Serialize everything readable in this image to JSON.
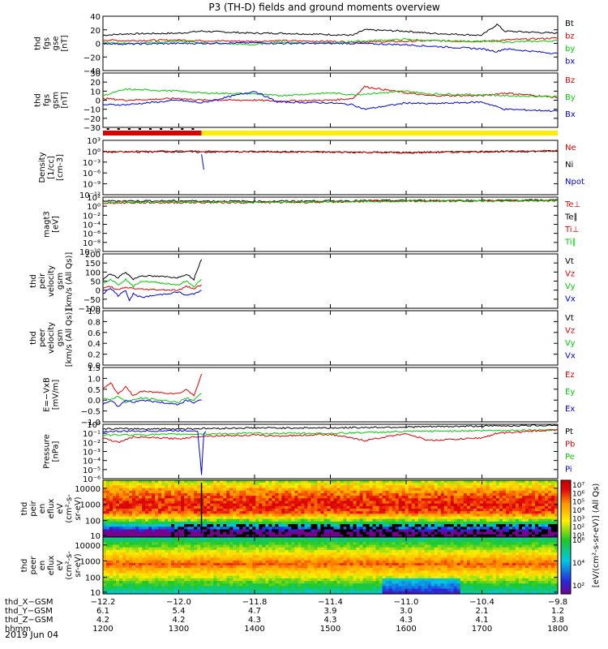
{
  "title": "P3 (TH-D) fields and ground moments overview",
  "date": "2019 Jun 04",
  "colors": {
    "black": "#000000",
    "red": "#e00000",
    "green": "#00cc00",
    "blue": "#0000dd",
    "yellow": "#ffee00"
  },
  "chart_data": [
    {
      "id": "fgs-gse",
      "type": "line",
      "ylabel": [
        "thd",
        "fgs",
        "gse",
        "[nT]"
      ],
      "ylim": [
        -40,
        40
      ],
      "yticks": [
        "40",
        "20",
        "0",
        "−20",
        "−40"
      ],
      "legend": [
        {
          "label": "Bt",
          "color": "#000000"
        },
        {
          "label": "bz",
          "color": "#e00000"
        },
        {
          "label": "by",
          "color": "#00cc00"
        },
        {
          "label": "bx",
          "color": "#0000dd"
        }
      ],
      "series": [
        {
          "color": "#000000",
          "x": [
            1200,
            1230,
            1300,
            1330,
            1400,
            1430,
            1500,
            1530,
            1545,
            1600,
            1630,
            1700,
            1720,
            1730,
            1800
          ],
          "y": [
            12,
            14,
            15,
            18,
            15,
            15,
            13,
            12,
            20,
            18,
            15,
            12,
            28,
            18,
            15
          ]
        },
        {
          "color": "#e00000",
          "x": [
            1200,
            1230,
            1300,
            1330,
            1400,
            1430,
            1500,
            1530,
            1600,
            1630,
            1700,
            1730,
            1800
          ],
          "y": [
            5,
            4,
            5,
            4,
            3,
            4,
            3,
            2,
            3,
            4,
            3,
            5,
            8
          ]
        },
        {
          "color": "#00cc00",
          "x": [
            1200,
            1230,
            1300,
            1330,
            1400,
            1430,
            1500,
            1530,
            1600,
            1630,
            1700,
            1730,
            1800
          ],
          "y": [
            2,
            0,
            3,
            1,
            -2,
            2,
            0,
            3,
            6,
            4,
            3,
            2,
            4
          ]
        },
        {
          "color": "#0000dd",
          "x": [
            1200,
            1230,
            1300,
            1330,
            1400,
            1430,
            1500,
            1530,
            1600,
            1630,
            1700,
            1720,
            1730,
            1800
          ],
          "y": [
            0,
            -1,
            0,
            0,
            1,
            0,
            0,
            0,
            -2,
            -4,
            -8,
            -12,
            -8,
            -15
          ]
        }
      ]
    },
    {
      "id": "fgs-gsm",
      "type": "line",
      "ylabel": [
        "thd",
        "fgs",
        "gsm",
        "[nT]"
      ],
      "ylim": [
        -30,
        30
      ],
      "yticks": [
        "30",
        "20",
        "10",
        "0",
        "−10",
        "−20",
        "−30"
      ],
      "legend": [
        {
          "label": "Bz",
          "color": "#e00000"
        },
        {
          "label": "By",
          "color": "#00cc00"
        },
        {
          "label": "Bx",
          "color": "#0000dd"
        }
      ],
      "series": [
        {
          "color": "#e00000",
          "x": [
            1200,
            1230,
            1300,
            1330,
            1400,
            1430,
            1500,
            1530,
            1545,
            1600,
            1630,
            1700,
            1730,
            1800
          ],
          "y": [
            2,
            0,
            2,
            0,
            0,
            -1,
            0,
            2,
            15,
            8,
            5,
            5,
            8,
            3
          ]
        },
        {
          "color": "#00cc00",
          "x": [
            1200,
            1230,
            1300,
            1330,
            1400,
            1430,
            1500,
            1530,
            1600,
            1630,
            1700,
            1730,
            1800
          ],
          "y": [
            5,
            12,
            10,
            8,
            7,
            5,
            8,
            6,
            10,
            7,
            6,
            5,
            4
          ]
        },
        {
          "color": "#0000dd",
          "x": [
            1200,
            1230,
            1300,
            1330,
            1400,
            1430,
            1500,
            1530,
            1545,
            1600,
            1630,
            1700,
            1730,
            1800
          ],
          "y": [
            -5,
            -5,
            0,
            -3,
            10,
            -2,
            -3,
            -5,
            -10,
            -3,
            -4,
            -2,
            -10,
            -12
          ]
        }
      ]
    },
    {
      "id": "density",
      "type": "line",
      "ylabel": [
        "Density",
        "[1/cc]",
        "[cm-3]"
      ],
      "ylim": [
        -10,
        3
      ],
      "yticks": [
        "10³",
        "10⁰",
        "10⁻³",
        "10⁻⁶",
        "10⁻⁹",
        "10⁻¹²"
      ],
      "legend": [
        {
          "label": "Ne",
          "color": "#e00000"
        },
        {
          "label": "Ni",
          "color": "#000000"
        },
        {
          "label": "Npot",
          "color": "#0000dd"
        }
      ],
      "series": [
        {
          "color": "#000000",
          "x": [
            1200,
            1300,
            1330,
            1400,
            1500,
            1600,
            1700,
            1800
          ],
          "y": [
            0.2,
            0.3,
            0.2,
            0.3,
            0.2,
            0.1,
            0.3,
            0.4
          ]
        },
        {
          "color": "#e00000",
          "x": [
            1200,
            1300,
            1400,
            1500,
            1600,
            1700,
            1800
          ],
          "y": [
            0.3,
            0.4,
            0.3,
            0.2,
            0.0,
            0.3,
            0.5
          ]
        },
        {
          "color": "#0000dd",
          "x": [
            1330,
            1333
          ],
          "y": [
            -0.5,
            -4
          ]
        }
      ]
    },
    {
      "id": "temperature",
      "type": "line",
      "ylabel": [
        "magt3",
        "[eV]"
      ],
      "ylim": [
        -10,
        3
      ],
      "yticks": [
        "10²",
        "10⁰",
        "10⁻²",
        "10⁻⁴",
        "10⁻⁶",
        "10⁻⁸",
        "10⁻¹⁰"
      ],
      "legend": [
        {
          "label": "Te⊥",
          "color": "#e00000"
        },
        {
          "label": "Te∥",
          "color": "#000000"
        },
        {
          "label": "Ti⊥",
          "color": "#e00000"
        },
        {
          "label": "Ti∥",
          "color": "#00cc00"
        }
      ],
      "series": [
        {
          "color": "#000000",
          "x": [
            1200,
            1300,
            1400,
            1500,
            1600,
            1700,
            1800
          ],
          "y": [
            2.1,
            2.1,
            2.0,
            2.1,
            2.2,
            2.2,
            2.3
          ]
        },
        {
          "color": "#e00000",
          "x": [
            1200,
            1300,
            1400,
            1500,
            1545,
            1600,
            1700,
            1800
          ],
          "y": [
            1.6,
            1.7,
            1.7,
            1.8,
            2.0,
            2.0,
            2.1,
            2.2
          ]
        },
        {
          "color": "#00cc00",
          "x": [
            1200,
            1300,
            1400,
            1500,
            1600,
            1700,
            1800
          ],
          "y": [
            1.8,
            1.9,
            1.8,
            1.9,
            2.0,
            2.1,
            2.1
          ]
        }
      ]
    },
    {
      "id": "peir-velocity",
      "type": "line",
      "ylabel": [
        "thd",
        "peir",
        "velocity",
        "gsm",
        "[km/s (All Qs)]"
      ],
      "ylim": [
        -100,
        200
      ],
      "yticks": [
        "200",
        "150",
        "100",
        "50",
        "0",
        "−50",
        "−100"
      ],
      "legend": [
        {
          "label": "Vt",
          "color": "#000000"
        },
        {
          "label": "Vz",
          "color": "#e00000"
        },
        {
          "label": "Vy",
          "color": "#00cc00"
        },
        {
          "label": "Vx",
          "color": "#0000dd"
        }
      ],
      "series": [
        {
          "color": "#000000",
          "x": [
            1200,
            1210,
            1220,
            1230,
            1240,
            1250,
            1300,
            1310,
            1320,
            1325,
            1330
          ],
          "y": [
            60,
            90,
            70,
            100,
            60,
            80,
            70,
            90,
            60,
            120,
            170
          ]
        },
        {
          "color": "#00cc00",
          "x": [
            1200,
            1210,
            1220,
            1230,
            1240,
            1250,
            1300,
            1310,
            1320,
            1330
          ],
          "y": [
            40,
            60,
            30,
            60,
            20,
            50,
            30,
            50,
            20,
            60
          ]
        },
        {
          "color": "#e00000",
          "x": [
            1200,
            1210,
            1220,
            1230,
            1240,
            1250,
            1300,
            1310,
            1320,
            1330
          ],
          "y": [
            10,
            20,
            0,
            15,
            10,
            5,
            0,
            20,
            10,
            30
          ]
        },
        {
          "color": "#0000dd",
          "x": [
            1200,
            1210,
            1220,
            1230,
            1235,
            1240,
            1250,
            1300,
            1310,
            1320,
            1330
          ],
          "y": [
            -20,
            10,
            -30,
            0,
            -60,
            -20,
            -40,
            -10,
            -30,
            -20,
            0
          ]
        }
      ]
    },
    {
      "id": "peer-velocity",
      "type": "line",
      "ylabel": [
        "thd",
        "peer",
        "velocity",
        "gsm",
        "[km/s (All Qs)]"
      ],
      "ylim": [
        0,
        1
      ],
      "yticks": [
        "1.0",
        "0.8",
        "0.6",
        "0.4",
        "0.2",
        "0.0"
      ],
      "legend": [
        {
          "label": "Vt",
          "color": "#000000"
        },
        {
          "label": "Vz",
          "color": "#e00000"
        },
        {
          "label": "Vy",
          "color": "#00cc00"
        },
        {
          "label": "Vx",
          "color": "#0000dd"
        }
      ],
      "series": []
    },
    {
      "id": "efield",
      "type": "line",
      "ylabel": [
        "E=−VxB",
        "[mV/m]"
      ],
      "ylim": [
        -1,
        1.5
      ],
      "yticks": [
        "1.5",
        "1.0",
        "0.5",
        "0.0",
        "−0.5",
        "−1.0"
      ],
      "legend": [
        {
          "label": "Ez",
          "color": "#e00000"
        },
        {
          "label": "Ey",
          "color": "#00cc00"
        },
        {
          "label": "Ex",
          "color": "#0000dd"
        }
      ],
      "series": [
        {
          "color": "#e00000",
          "x": [
            1200,
            1210,
            1220,
            1230,
            1240,
            1250,
            1300,
            1310,
            1320,
            1330
          ],
          "y": [
            0.5,
            0.8,
            0.3,
            0.6,
            0.2,
            0.4,
            0.3,
            0.5,
            0.2,
            1.2
          ]
        },
        {
          "color": "#00cc00",
          "x": [
            1200,
            1210,
            1220,
            1230,
            1240,
            1250,
            1300,
            1310,
            1320,
            1330
          ],
          "y": [
            0.1,
            0.0,
            0.2,
            -0.1,
            0.0,
            0.1,
            -0.1,
            0.1,
            0.0,
            0.3
          ]
        },
        {
          "color": "#0000dd",
          "x": [
            1200,
            1210,
            1220,
            1230,
            1240,
            1250,
            1300,
            1310,
            1320,
            1330
          ],
          "y": [
            -0.2,
            0.0,
            -0.3,
            0.0,
            -0.1,
            0.0,
            -0.2,
            0.0,
            -0.1,
            0.0
          ]
        }
      ]
    },
    {
      "id": "pressure",
      "type": "line",
      "ylabel": [
        "Pressure",
        "[nPa]"
      ],
      "ylim": [
        -6,
        0
      ],
      "yticks": [
        "10⁰",
        "10⁻¹",
        "10⁻²",
        "10⁻³",
        "10⁻⁴",
        "10⁻⁵",
        "10⁻⁶"
      ],
      "legend": [
        {
          "label": "Pt",
          "color": "#000000"
        },
        {
          "label": "Pb",
          "color": "#e00000"
        },
        {
          "label": "Pe",
          "color": "#00cc00"
        },
        {
          "label": "Pi",
          "color": "#0000dd"
        }
      ],
      "series": [
        {
          "color": "#000000",
          "x": [
            1200,
            1300,
            1400,
            1500,
            1600,
            1700,
            1800
          ],
          "y": [
            -0.5,
            -0.5,
            -0.4,
            -0.4,
            -0.3,
            -0.2,
            -0.1
          ]
        },
        {
          "color": "#00cc00",
          "x": [
            1200,
            1300,
            1400,
            1500,
            1600,
            1700,
            1800
          ],
          "y": [
            -1.2,
            -1.1,
            -1.0,
            -1.0,
            -0.8,
            -0.7,
            -0.6
          ]
        },
        {
          "color": "#e00000",
          "x": [
            1200,
            1220,
            1240,
            1300,
            1330,
            1400,
            1430,
            1500,
            1545,
            1600,
            1630,
            1700,
            1720,
            1800
          ],
          "y": [
            -1.5,
            -2,
            -1.4,
            -1.6,
            -1.3,
            -1.2,
            -1.3,
            -1.1,
            -1.8,
            -1.0,
            -1.8,
            -1.5,
            -1.0,
            -0.6
          ]
        },
        {
          "color": "#0000dd",
          "x": [
            1200,
            1300,
            1325,
            1330,
            1333,
            1336
          ],
          "y": [
            -0.8,
            -0.7,
            -0.7,
            -5.5,
            -1.0,
            -0.8
          ]
        }
      ]
    },
    {
      "id": "peir-eflux",
      "type": "heatmap",
      "ylabel": [
        "thd",
        "peir",
        "en",
        "eflux",
        "eV",
        "(cm²-s-",
        "sr-eV)"
      ],
      "yticks": [
        "10000",
        "1000",
        "100",
        "10"
      ]
    },
    {
      "id": "peer-eflux",
      "type": "heatmap",
      "ylabel": [
        "thd",
        "peer",
        "en",
        "eflux",
        "eV",
        "(cm²-s-",
        "sr-eV)"
      ],
      "yticks": [
        "10000",
        "1000",
        "100",
        "10"
      ]
    }
  ],
  "colorbar": {
    "label": "[eV/(cm²-s-sr-eV)] (All Qs)",
    "upper_ticks": [
      "10⁷",
      "10⁶",
      "10⁵",
      "10⁴",
      "10³",
      "10²",
      "10¹"
    ],
    "lower_ticks": [
      "10⁶",
      "10⁴",
      "10²"
    ]
  },
  "ephemeris": {
    "labels": [
      "thd_X−GSM",
      "thd_Y−GSM",
      "thd_Z−GSM",
      "hhmm"
    ],
    "x_row": [
      "−12.2",
      "−12.0",
      "−11.8",
      "−11.4",
      "−11.0",
      "−10.4",
      "−9.8"
    ],
    "y_row": [
      "6.1",
      "5.4",
      "4.7",
      "3.9",
      "3.0",
      "2.1",
      "1.2"
    ],
    "z_row": [
      "4.2",
      "4.2",
      "4.3",
      "4.3",
      "4.3",
      "4.1",
      "3.8"
    ],
    "hhmm_row": [
      "1200",
      "1300",
      "1400",
      "1500",
      "1600",
      "1700",
      "1800"
    ]
  }
}
